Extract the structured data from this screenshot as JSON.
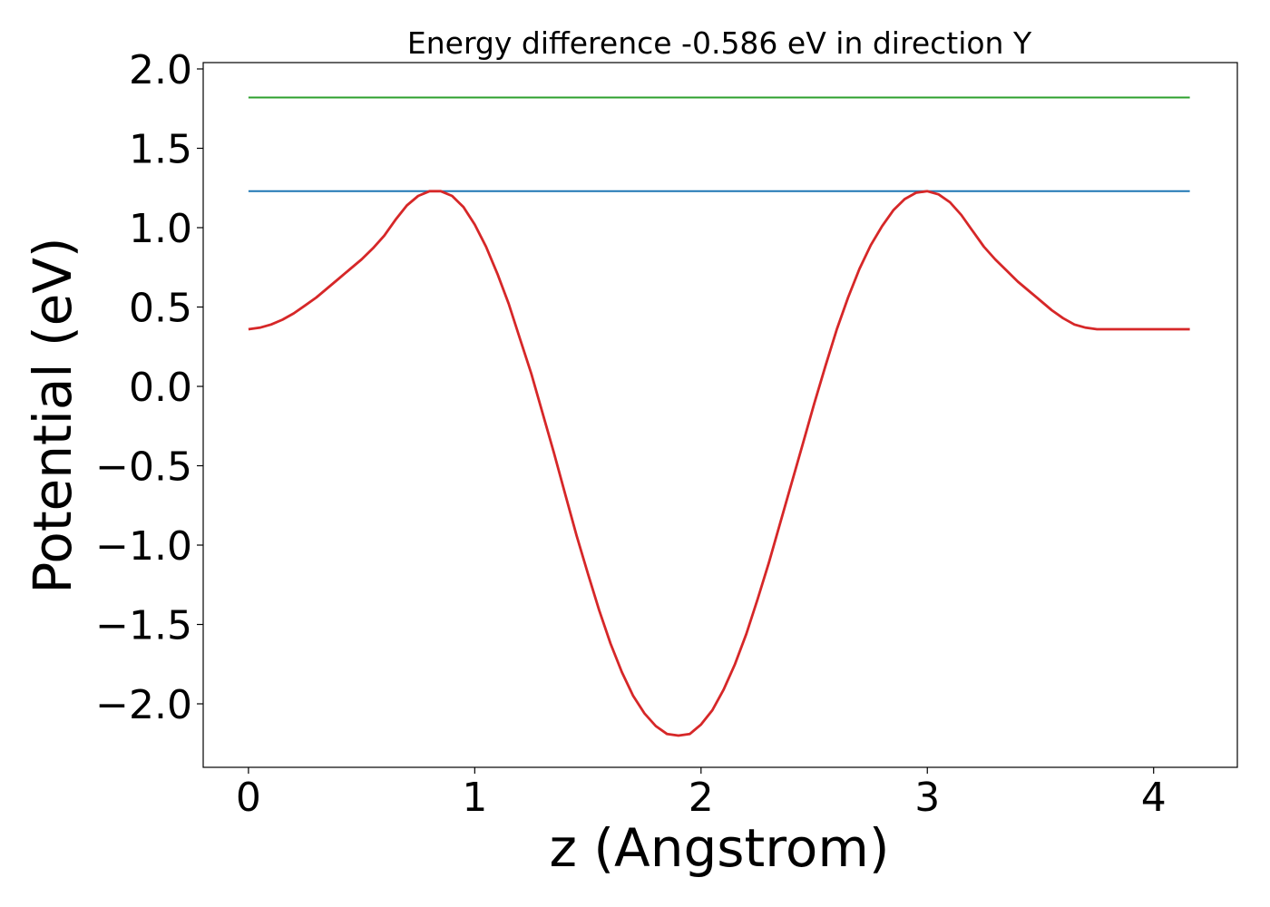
{
  "chart_data": {
    "type": "line",
    "title": "Energy difference -0.586 eV in direction Y",
    "xlabel": "z (Angstrom)",
    "ylabel": "Potential (eV)",
    "xlim": [
      -0.2,
      4.37
    ],
    "ylim": [
      -2.4,
      2.04
    ],
    "xticks": [
      {
        "value": 0,
        "label": "0"
      },
      {
        "value": 1,
        "label": "1"
      },
      {
        "value": 2,
        "label": "2"
      },
      {
        "value": 3,
        "label": "3"
      },
      {
        "value": 4,
        "label": "4"
      }
    ],
    "yticks": [
      {
        "value": 2.0,
        "label": "2.0"
      },
      {
        "value": 1.5,
        "label": "1.5"
      },
      {
        "value": 1.0,
        "label": "1.0"
      },
      {
        "value": 0.5,
        "label": "0.5"
      },
      {
        "value": 0.0,
        "label": "0.0"
      },
      {
        "value": -0.5,
        "label": "−0.5"
      },
      {
        "value": -1.0,
        "label": "−1.0"
      },
      {
        "value": -1.5,
        "label": "−1.5"
      },
      {
        "value": -2.0,
        "label": "−2.0"
      }
    ],
    "grid": false,
    "series": [
      {
        "color": "#2ca02c",
        "x": [
          0,
          4.16
        ],
        "y": [
          1.82,
          1.82
        ]
      },
      {
        "color": "#1f77b4",
        "x": [
          0,
          4.16
        ],
        "y": [
          1.23,
          1.23
        ]
      },
      {
        "color": "#d62728",
        "x": [
          0,
          0.05,
          0.1,
          0.15,
          0.2,
          0.25,
          0.3,
          0.35,
          0.4,
          0.45,
          0.5,
          0.55,
          0.6,
          0.65,
          0.7,
          0.75,
          0.8,
          0.85,
          0.9,
          0.95,
          1.0,
          1.05,
          1.1,
          1.15,
          1.2,
          1.25,
          1.3,
          1.35,
          1.4,
          1.45,
          1.5,
          1.55,
          1.6,
          1.65,
          1.7,
          1.75,
          1.8,
          1.85,
          1.9,
          1.95,
          2.0,
          2.05,
          2.1,
          2.15,
          2.2,
          2.25,
          2.3,
          2.35,
          2.4,
          2.45,
          2.5,
          2.55,
          2.6,
          2.65,
          2.7,
          2.75,
          2.8,
          2.85,
          2.9,
          2.95,
          3.0,
          3.05,
          3.1,
          3.15,
          3.2,
          3.25,
          3.3,
          3.35,
          3.4,
          3.45,
          3.5,
          3.55,
          3.6,
          3.65,
          3.7,
          3.75,
          3.8,
          3.85,
          3.9,
          3.95,
          4.0,
          4.05,
          4.1,
          4.16
        ],
        "y": [
          0.36,
          0.37,
          0.39,
          0.42,
          0.46,
          0.51,
          0.56,
          0.62,
          0.68,
          0.74,
          0.8,
          0.87,
          0.95,
          1.05,
          1.14,
          1.2,
          1.23,
          1.23,
          1.2,
          1.13,
          1.02,
          0.88,
          0.71,
          0.52,
          0.3,
          0.08,
          -0.17,
          -0.42,
          -0.68,
          -0.94,
          -1.18,
          -1.41,
          -1.62,
          -1.8,
          -1.95,
          -2.06,
          -2.14,
          -2.19,
          -2.2,
          -2.19,
          -2.13,
          -2.04,
          -1.91,
          -1.75,
          -1.56,
          -1.34,
          -1.11,
          -0.86,
          -0.61,
          -0.36,
          -0.11,
          0.13,
          0.36,
          0.56,
          0.74,
          0.89,
          1.01,
          1.11,
          1.18,
          1.22,
          1.23,
          1.21,
          1.16,
          1.08,
          0.98,
          0.88,
          0.8,
          0.73,
          0.66,
          0.6,
          0.54,
          0.48,
          0.43,
          0.39,
          0.37,
          0.36,
          0.36,
          0.36,
          0.36,
          0.36,
          0.36,
          0.36,
          0.36,
          0.36
        ]
      }
    ]
  }
}
